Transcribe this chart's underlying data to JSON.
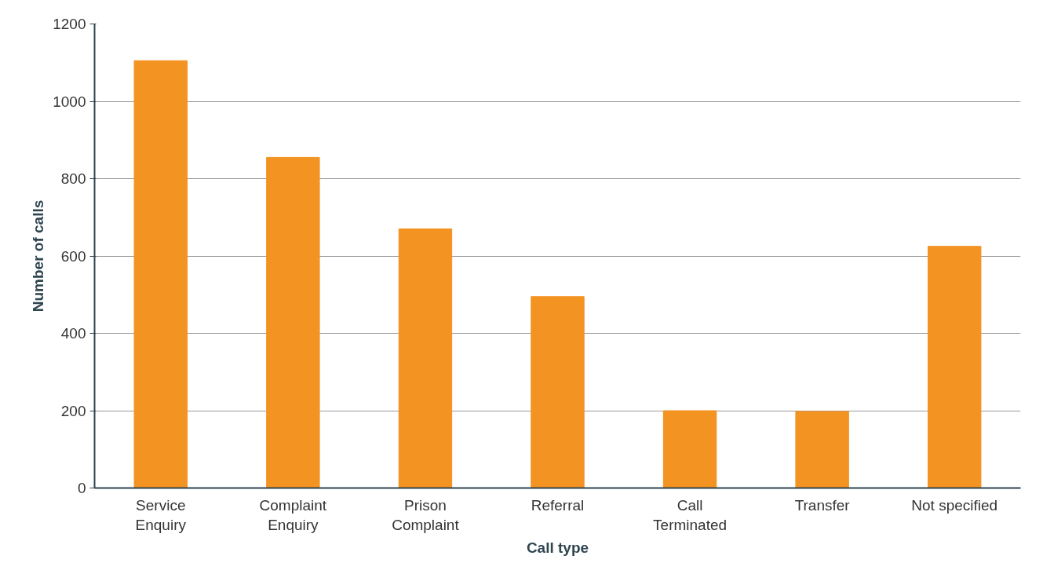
{
  "chart_data": {
    "type": "bar",
    "xlabel": "Call type",
    "ylabel": "Number of calls",
    "categories": [
      "Service\nEnquiry",
      "Complaint\nEnquiry",
      "Prison\nComplaint",
      "Referral",
      "Call\nTerminated",
      "Transfer",
      "Not specified"
    ],
    "values": [
      1105,
      855,
      670,
      495,
      200,
      198,
      625
    ],
    "color": "#f39322",
    "ylim": [
      0,
      1200
    ],
    "yticks": [
      0,
      200,
      400,
      600,
      800,
      1000,
      1200
    ],
    "grid": "y"
  }
}
